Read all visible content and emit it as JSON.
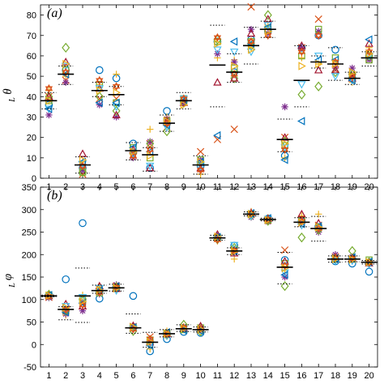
{
  "chart_data": [
    {
      "type": "scatter",
      "panel_label": "(a)",
      "ylabel": "θ",
      "ylabel_sub": "L",
      "xlim": [
        0.5,
        20.5
      ],
      "ylim": [
        0,
        85
      ],
      "grid": false,
      "x_ticks": [
        1,
        2,
        3,
        4,
        5,
        6,
        7,
        8,
        9,
        10,
        11,
        12,
        13,
        14,
        15,
        16,
        17,
        18,
        19,
        20
      ],
      "y_ticks": [
        0,
        10,
        20,
        30,
        40,
        50,
        60,
        70,
        80
      ],
      "mean": [
        38,
        51,
        6.5,
        43,
        41,
        13.5,
        11.5,
        27,
        38,
        6.5,
        55.5,
        52,
        65,
        73,
        19,
        48,
        57,
        56,
        49,
        59
      ],
      "dotted_upper": [
        42,
        55,
        10.5,
        47,
        45,
        17.5,
        15,
        31,
        42,
        11,
        75,
        61,
        74,
        77,
        29,
        65,
        60,
        64,
        52,
        62
      ],
      "dotted_lower": [
        34,
        46,
        2.5,
        40,
        36,
        9,
        3.5,
        23,
        34,
        2,
        35,
        47,
        56,
        69,
        13,
        35,
        54,
        48,
        46,
        55
      ],
      "markers": {
        "circle": [
          36,
          53,
          5,
          53,
          49,
          17,
          5,
          33,
          38,
          6,
          67,
          52,
          68,
          72,
          11,
          64,
          70,
          63,
          49,
          60
        ],
        "x_cross": [
          40,
          48,
          2,
          39,
          39,
          11,
          17,
          25,
          38,
          13,
          19,
          24,
          84,
          74,
          20,
          64,
          78,
          53,
          50,
          59
        ],
        "plus": [
          43,
          50,
          8,
          46,
          51,
          13,
          24,
          30,
          37,
          2,
          59,
          58,
          64,
          75,
          10,
          59,
          56,
          55,
          47,
          64
        ],
        "asterisk": [
          31,
          47,
          4,
          36,
          30,
          10,
          18,
          29,
          37,
          9,
          61,
          57,
          73,
          71,
          35,
          64,
          72,
          54,
          54,
          58
        ],
        "square": [
          38,
          53,
          3,
          46,
          37,
          15,
          10,
          28,
          39,
          9,
          67,
          54,
          67,
          73,
          16,
          60,
          73,
          59,
          50,
          58
        ],
        "diamond": [
          40,
          64,
          3,
          40,
          33,
          12,
          17,
          23,
          37,
          7,
          68,
          49,
          65,
          80,
          18,
          41,
          45,
          52,
          51,
          60
        ],
        "triangle_up": [
          40,
          57,
          12,
          44,
          31,
          14,
          5,
          28,
          37,
          5,
          47,
          49,
          71,
          78,
          20,
          65,
          53,
          53,
          49,
          66
        ],
        "triangle_down": [
          34,
          55,
          7,
          44,
          35,
          12,
          6,
          25,
          39,
          6,
          63,
          62,
          62,
          75,
          15,
          46,
          60,
          50,
          48,
          60
        ],
        "triangle_left": [
          34,
          51,
          8,
          37,
          37,
          15,
          13,
          26,
          38,
          8,
          21,
          67,
          66,
          74,
          9,
          28,
          58,
          58,
          48,
          68
        ],
        "hexagram": [
          44,
          52,
          6,
          48,
          45,
          11,
          14,
          27,
          39,
          4,
          69,
          51,
          67,
          70,
          14,
          62,
          70,
          57,
          50,
          62
        ],
        "triangle_right": [
          38,
          56,
          9,
          43,
          42,
          13,
          11,
          28,
          36,
          8,
          66,
          55,
          63,
          72,
          17,
          55,
          56,
          56,
          52,
          61
        ]
      }
    },
    {
      "type": "scatter",
      "panel_label": "(b)",
      "ylabel": "φ",
      "ylabel_sub": "L",
      "xlim": [
        0.5,
        20.5
      ],
      "ylim": [
        -50,
        350
      ],
      "grid": false,
      "x_ticks": [
        1,
        2,
        3,
        4,
        5,
        6,
        7,
        8,
        9,
        10,
        11,
        12,
        13,
        14,
        15,
        16,
        17,
        18,
        19,
        20
      ],
      "x_tick_labels": [
        "1",
        "2",
        "3",
        "4",
        "5",
        "6",
        "7",
        "8",
        "9",
        "10",
        "11",
        "12",
        "13",
        "14",
        "15",
        "16",
        "17",
        "18",
        "19",
        "20"
      ],
      "y_ticks": [
        -50,
        0,
        50,
        100,
        150,
        200,
        250,
        300,
        350
      ],
      "mean": [
        108,
        78,
        108,
        120,
        126,
        37,
        5,
        24,
        35,
        33,
        237,
        208,
        290,
        278,
        172,
        272,
        258,
        190,
        190,
        183
      ],
      "dotted_upper": [
        110,
        84,
        170,
        132,
        134,
        68,
        27,
        33,
        44,
        39,
        243,
        215,
        295,
        281,
        205,
        282,
        285,
        197,
        197,
        187
      ],
      "dotted_lower": [
        106,
        55,
        49,
        114,
        119,
        25,
        -6,
        17,
        29,
        28,
        232,
        200,
        286,
        275,
        135,
        262,
        230,
        183,
        184,
        179
      ],
      "markers": {
        "circle": [
          110,
          145,
          270,
          102,
          124,
          108,
          -15,
          12,
          28,
          26,
          240,
          220,
          290,
          280,
          188,
          275,
          260,
          185,
          180,
          162
        ],
        "x_cross": [
          105,
          80,
          95,
          123,
          130,
          40,
          17,
          26,
          38,
          32,
          236,
          210,
          289,
          276,
          210,
          270,
          265,
          195,
          190,
          183
        ],
        "plus": [
          112,
          65,
          110,
          128,
          122,
          36,
          -10,
          30,
          40,
          30,
          230,
          190,
          296,
          282,
          165,
          286,
          290,
          188,
          188,
          180
        ],
        "asterisk": [
          104,
          68,
          75,
          112,
          133,
          41,
          8,
          22,
          34,
          36,
          241,
          205,
          283,
          273,
          150,
          278,
          250,
          200,
          195,
          185
        ],
        "square": [
          109,
          76,
          98,
          115,
          126,
          38,
          10,
          25,
          33,
          37,
          238,
          212,
          291,
          277,
          180,
          276,
          262,
          192,
          190,
          188
        ],
        "diamond": [
          111,
          75,
          100,
          118,
          128,
          30,
          3,
          21,
          44,
          29,
          234,
          215,
          287,
          275,
          130,
          238,
          255,
          190,
          208,
          183
        ],
        "triangle_up": [
          108,
          90,
          85,
          130,
          124,
          42,
          5,
          24,
          36,
          41,
          245,
          203,
          293,
          280,
          185,
          290,
          270,
          194,
          192,
          181
        ],
        "triangle_down": [
          106,
          85,
          105,
          125,
          120,
          35,
          0,
          20,
          35,
          33,
          235,
          221,
          286,
          279,
          160,
          265,
          258,
          186,
          186,
          178
        ],
        "triangle_left": [
          110,
          72,
          92,
          120,
          129,
          38,
          -2,
          27,
          32,
          30,
          239,
          208,
          292,
          281,
          155,
          268,
          263,
          191,
          194,
          184
        ],
        "hexagram": [
          107,
          78,
          88,
          116,
          127,
          34,
          12,
          23,
          37,
          35,
          233,
          209,
          291,
          278,
          175,
          274,
          258,
          193,
          191,
          182
        ],
        "triangle_right": [
          109,
          82,
          96,
          121,
          125,
          39,
          6,
          24,
          36,
          34,
          240,
          207,
          290,
          277,
          170,
          272,
          261,
          190,
          189,
          183
        ]
      }
    }
  ],
  "marker_colors": {
    "circle": "#0072bd",
    "x_cross": "#d95319",
    "plus": "#edb120",
    "asterisk": "#7e2f8e",
    "square": "#77ac30",
    "diamond": "#77ac30",
    "triangle_up": "#a2142f",
    "triangle_down": "#4dbeee",
    "triangle_left": "#0072bd",
    "hexagram": "#d95319",
    "triangle_right": "#edb120"
  },
  "mean_line_color": "#000000",
  "dotted_line_color": "#000000"
}
